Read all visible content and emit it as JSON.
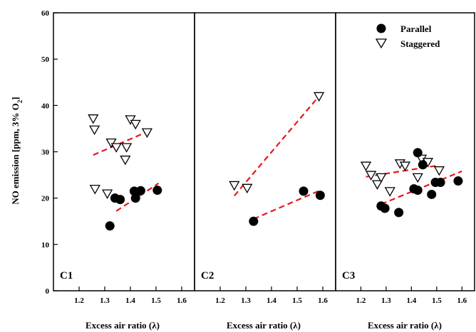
{
  "chart_data": {
    "type": "scatter",
    "ylabel": "NO emission [ppm, 3% O2]",
    "ylabel_parts": {
      "main": "NO emission [ppm, 3% O",
      "sub": "2",
      "close": "]"
    },
    "xlabel": "Excess air ratio (λ)",
    "ylim": [
      0,
      60
    ],
    "yticks": [
      "0",
      "10",
      "20",
      "30",
      "40",
      "50",
      "60"
    ],
    "xlim": [
      1.1,
      1.65
    ],
    "xticks": [
      "1.2",
      "1.3",
      "1.4",
      "1.5",
      "1.6"
    ],
    "legend": {
      "placement": "top-right",
      "parallel": "Parallel",
      "staggered": "Staggered"
    },
    "colors": {
      "fit_line": "#e8161b",
      "markers": "#000000"
    },
    "panels": [
      {
        "label": "C1",
        "parallel": {
          "x": [
            1.32,
            1.34,
            1.36,
            1.415,
            1.42,
            1.44,
            1.505
          ],
          "y": [
            14,
            20,
            19.7,
            21.5,
            20,
            21.6,
            21.7
          ]
        },
        "staggered": {
          "x": [
            1.255,
            1.26,
            1.262,
            1.31,
            1.325,
            1.345,
            1.38,
            1.385,
            1.4,
            1.42,
            1.465
          ],
          "y": [
            37.2,
            34.8,
            22,
            21,
            32,
            31,
            28.3,
            31,
            37,
            36,
            34.2
          ]
        },
        "parallel_fit": {
          "x": [
            1.345,
            1.51
          ],
          "y": [
            17.2,
            23.2
          ]
        },
        "staggered_fit": {
          "x": [
            1.255,
            1.465
          ],
          "y": [
            29.3,
            34.3
          ]
        }
      },
      {
        "label": "C2",
        "parallel": {
          "x": [
            1.33,
            1.525,
            1.59
          ],
          "y": [
            15,
            21.5,
            20.6
          ]
        },
        "staggered": {
          "x": [
            1.255,
            1.305,
            1.585
          ],
          "y": [
            22.8,
            22.2,
            42
          ]
        },
        "parallel_fit": {
          "x": [
            1.33,
            1.595
          ],
          "y": [
            15.5,
            21.8
          ]
        },
        "staggered_fit": {
          "x": [
            1.255,
            1.59
          ],
          "y": [
            20.5,
            42.3
          ]
        }
      },
      {
        "label": "C3",
        "parallel": {
          "x": [
            1.28,
            1.295,
            1.35,
            1.41,
            1.425,
            1.425,
            1.445,
            1.48,
            1.495,
            1.515,
            1.585
          ],
          "y": [
            18.3,
            17.8,
            16.9,
            22,
            21.7,
            29.8,
            27.2,
            20.8,
            23.4,
            23.4,
            23.7
          ]
        },
        "staggered": {
          "x": [
            1.22,
            1.24,
            1.265,
            1.28,
            1.315,
            1.355,
            1.375,
            1.425,
            1.44,
            1.465,
            1.51
          ],
          "y": [
            27,
            25,
            23,
            24.5,
            21.5,
            27.5,
            27,
            24.5,
            28.5,
            27.8,
            26
          ]
        },
        "parallel_fit": {
          "x": [
            1.28,
            1.6
          ],
          "y": [
            18.7,
            25.8
          ]
        },
        "staggered_fit": {
          "x": [
            1.22,
            1.5
          ],
          "y": [
            24.6,
            27
          ]
        }
      }
    ]
  }
}
